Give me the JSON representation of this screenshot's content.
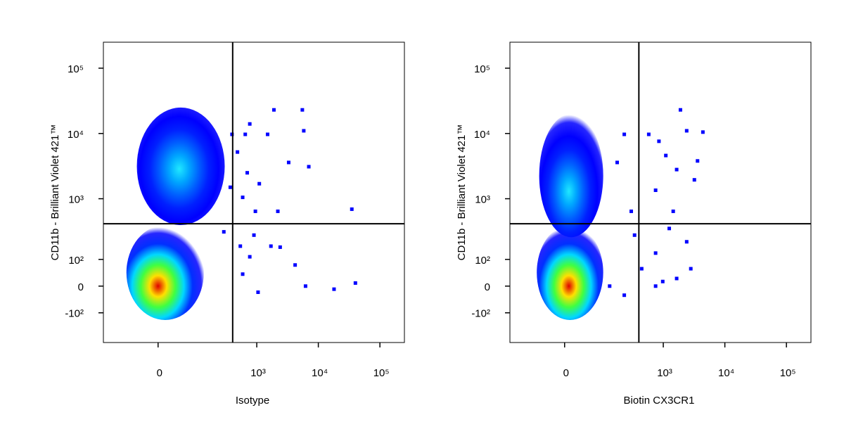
{
  "chart_data": [
    {
      "type": "scatter",
      "scale": "biexponential",
      "xlabel": "Isotype",
      "ylabel": "CD11b - Brilliant Violet 421™",
      "xlim": [
        -190,
        250000
      ],
      "ylim": [
        -330,
        250000
      ],
      "xticks": [
        0,
        {
          "value": 1000,
          "label": "10³"
        },
        {
          "value": 10000,
          "label": "10⁴"
        },
        {
          "value": 100000,
          "label": "10⁵"
        }
      ],
      "yticks": [
        {
          "value": -100,
          "label": "-10²"
        },
        0,
        {
          "value": 100,
          "label": "10²"
        },
        {
          "value": 1000,
          "label": "10³"
        },
        {
          "value": 10000,
          "label": "10⁴"
        },
        {
          "value": 100000,
          "label": "10⁵"
        }
      ],
      "gates": {
        "x": 405,
        "y": 410,
        "color": "#000000"
      },
      "populations": [
        {
          "x": 0,
          "y": 0,
          "x_range": [
            -74,
            134
          ],
          "y_range": [
            -138,
            390
          ],
          "colors": [
            "#e00000",
            "#ffe000",
            "#40ff40",
            "#00d8ff",
            "#0030ff",
            "#0000ff"
          ]
        },
        {
          "x": 44,
          "y": 2860,
          "x_range": [
            -44,
            300
          ],
          "y_range": [
            390,
            25000
          ],
          "colors": [
            "#20e8ff",
            "#00a8ff",
            "#0060ff",
            "#0020ff",
            "#0000ff",
            "#0000ff"
          ]
        }
      ],
      "series": [
        {
          "color": "#0000ff",
          "x": [
            5500,
            5800,
            7000,
            35000,
            1900,
            770,
            650,
            1500,
            3300,
            1100,
            590,
            2200,
            900,
            540,
            1700,
            770,
            4200,
            6200,
            18000,
            40000,
            1050,
            590,
            2400,
            395,
            485,
            700,
            370,
            950,
            290
          ],
          "y": [
            23000,
            11000,
            3100,
            690,
            23000,
            14000,
            9700,
            9700,
            3600,
            1700,
            1050,
            640,
            270,
            177,
            177,
            113,
            75,
            0,
            -10,
            10,
            -20,
            40,
            170,
            9700,
            5200,
            2500,
            1500,
            640,
            305
          ]
        }
      ]
    },
    {
      "type": "scatter",
      "scale": "biexponential",
      "xlabel": "Biotin CX3CR1",
      "ylabel": "CD11b - Brilliant Violet 421™",
      "xlim": [
        -190,
        250000
      ],
      "ylim": [
        -330,
        250000
      ],
      "xticks": [
        0,
        {
          "value": 1000,
          "label": "10³"
        },
        {
          "value": 10000,
          "label": "10⁴"
        },
        {
          "value": 100000,
          "label": "10⁵"
        }
      ],
      "yticks": [
        {
          "value": -100,
          "label": "-10²"
        },
        0,
        {
          "value": 100,
          "label": "10²"
        },
        {
          "value": 1000,
          "label": "10³"
        },
        {
          "value": 10000,
          "label": "10⁴"
        },
        {
          "value": 100000,
          "label": "10⁵"
        }
      ],
      "gates": {
        "x": 400,
        "y": 410,
        "color": "#000000"
      },
      "populations": [
        {
          "x": 8,
          "y": 0,
          "x_range": [
            -62,
            100
          ],
          "y_range": [
            -138,
            390
          ],
          "colors": [
            "#e00000",
            "#ffe000",
            "#40ff40",
            "#00d8ff",
            "#0030ff",
            "#0000ff"
          ]
        },
        {
          "x": 8,
          "y": 1300,
          "x_range": [
            -55,
            100
          ],
          "y_range": [
            250,
            20000
          ],
          "colors": [
            "#20e8ff",
            "#00a8ff",
            "#0060ff",
            "#0020ff",
            "#0000ff",
            "#0000ff"
          ]
        }
      ],
      "series": [
        {
          "color": "#0000ff",
          "x": [
            1900,
            4400,
            3600,
            3200,
            1650,
            850,
            580,
            1100,
            2400,
            750,
            1450,
            1250,
            2400,
            750,
            2800,
            980,
            750,
            1650,
            340,
            445,
            230,
            130,
            300,
            230,
            175
          ],
          "y": [
            23000,
            10500,
            3800,
            1950,
            2800,
            7600,
            9700,
            4600,
            11000,
            1350,
            640,
            345,
            210,
            133,
            60,
            15,
            0,
            25,
            270,
            60,
            -30,
            0,
            640,
            9700,
            3600
          ]
        }
      ]
    }
  ]
}
